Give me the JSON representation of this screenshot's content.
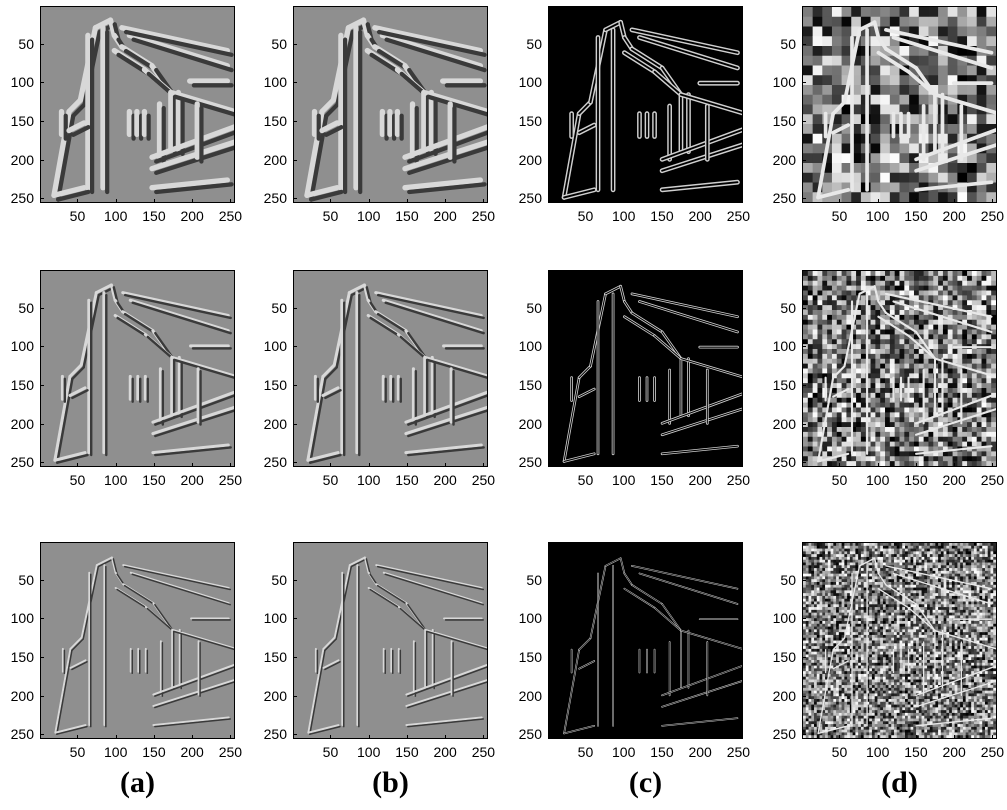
{
  "figure": {
    "columns": [
      {
        "label": "(a)",
        "base": "#8f8f8f",
        "kind": "gradient"
      },
      {
        "label": "(b)",
        "base": "#8f8f8f",
        "kind": "gradient"
      },
      {
        "label": "(c)",
        "base": "#000000",
        "kind": "magnitude"
      },
      {
        "label": "(d)",
        "base": "#777777",
        "kind": "phase"
      }
    ],
    "rows": [
      {
        "scale": "coarse"
      },
      {
        "scale": "medium"
      },
      {
        "scale": "fine"
      }
    ],
    "axes": {
      "xticks": [
        "50",
        "100",
        "150",
        "200",
        "250"
      ],
      "yticks": [
        "50",
        "100",
        "150",
        "200",
        "250"
      ],
      "range": [
        1,
        256
      ]
    }
  }
}
